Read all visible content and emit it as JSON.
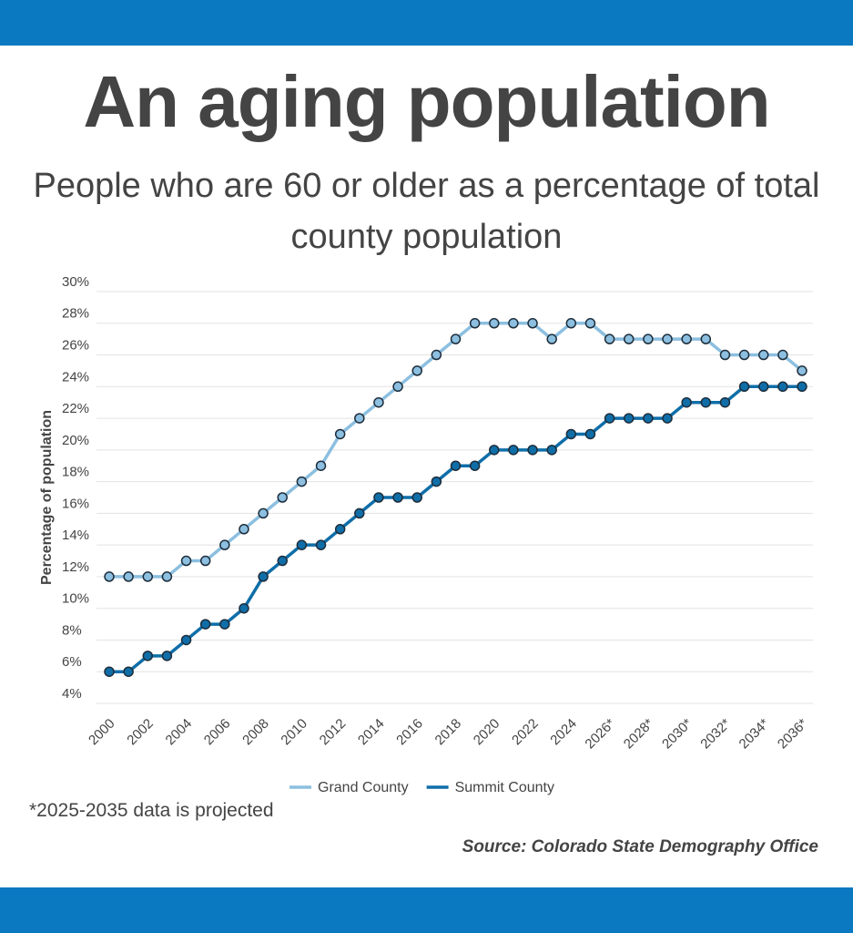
{
  "chart_data": {
    "type": "line",
    "title": "An aging population",
    "subtitle": "People who are 60 or older as a percentage of total county population",
    "y_label": "Percentage of population",
    "note": "*2025-2035 data is projected",
    "source": "Source: Colorado State Demography Office",
    "categories": [
      "2000",
      null,
      "2002",
      null,
      "2004",
      null,
      "2006",
      null,
      "2008",
      null,
      "2010",
      null,
      "2012",
      null,
      "2014",
      null,
      "2016",
      null,
      "2018",
      null,
      "2020",
      null,
      "2022",
      null,
      "2024",
      null,
      "2026*",
      null,
      "2028*",
      null,
      "2030*",
      null,
      "2032*",
      null,
      "2034*",
      null,
      "2036*"
    ],
    "series": [
      {
        "name": "Grand County",
        "color": "#8cbfe0",
        "values": [
          12,
          12,
          12,
          12,
          13,
          13,
          14,
          15,
          16,
          17,
          18,
          19,
          21,
          22,
          23,
          24,
          25,
          26,
          27,
          28,
          28,
          28,
          28,
          27,
          28,
          28,
          27,
          27,
          27,
          27,
          27,
          27,
          26,
          26,
          26,
          26,
          25
        ]
      },
      {
        "name": "Summit County",
        "color": "#0f6ea8",
        "values": [
          6,
          6,
          7,
          7,
          8,
          9,
          9,
          10,
          12,
          13,
          14,
          14,
          15,
          16,
          17,
          17,
          17,
          18,
          19,
          19,
          20,
          20,
          20,
          20,
          21,
          21,
          22,
          22,
          22,
          22,
          23,
          23,
          23,
          24,
          24,
          24,
          24
        ]
      }
    ],
    "ylim": [
      4,
      30
    ],
    "yticks": [
      {
        "value": 4,
        "label": "4%"
      },
      {
        "value": 6,
        "label": "6%"
      },
      {
        "value": 8,
        "label": "8%"
      },
      {
        "value": 10,
        "label": "10%"
      },
      {
        "value": 12,
        "label": "12%"
      },
      {
        "value": 14,
        "label": "14%"
      },
      {
        "value": 16,
        "label": "16%"
      },
      {
        "value": 18,
        "label": "18%"
      },
      {
        "value": 20,
        "label": "20%"
      },
      {
        "value": 22,
        "label": "22%"
      },
      {
        "value": 24,
        "label": "24%"
      },
      {
        "value": 26,
        "label": "26%"
      },
      {
        "value": 28,
        "label": "28%"
      },
      {
        "value": 30,
        "label": "30%"
      }
    ],
    "grid": true,
    "legend": "bottom"
  }
}
